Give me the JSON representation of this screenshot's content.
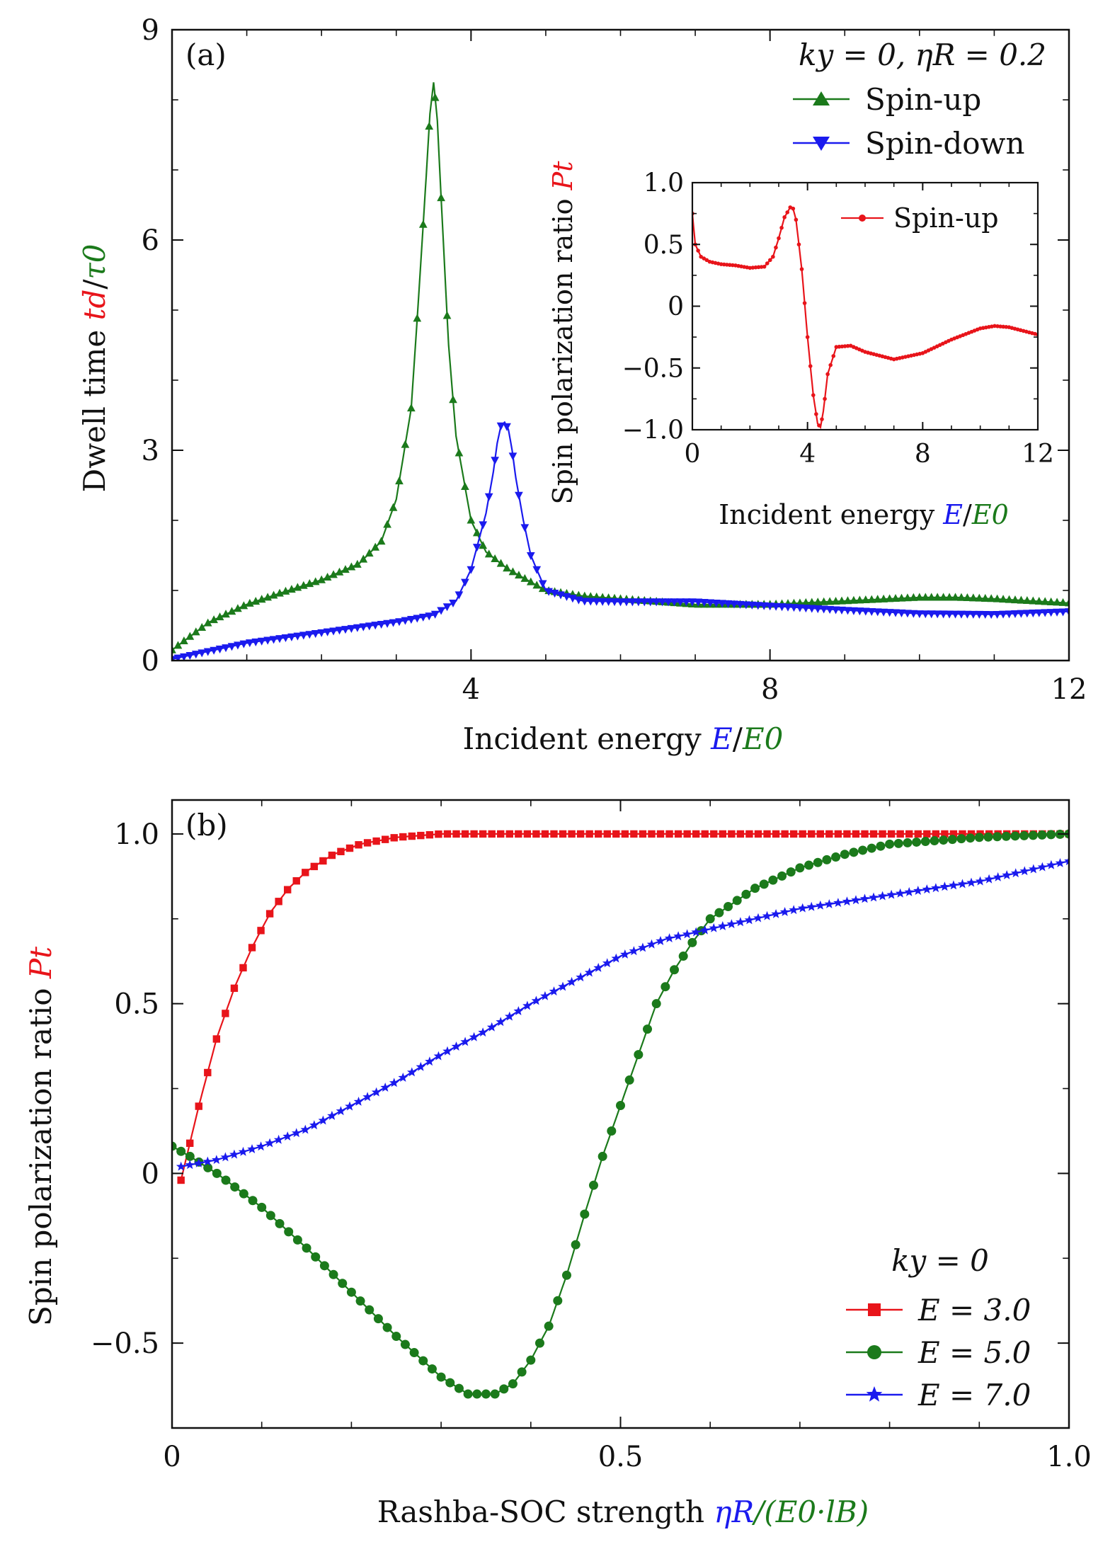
{
  "chart_data": [
    {
      "id": "a",
      "type": "line",
      "panel_label": "(a)",
      "title": "",
      "xlabel": "Incident energy E/E0",
      "xlabel_text": "Incident energy",
      "xlabel_symbol": "E",
      "xlabel_sep": "/",
      "xlabel_norm": "E0",
      "ylabel": "Dwell time td/τ0",
      "ylabel_text": "Dwell time",
      "ylabel_symbol": "td",
      "ylabel_sep": "/",
      "ylabel_norm": "τ0",
      "xlim": [
        0,
        12
      ],
      "ylim": [
        0,
        9
      ],
      "xticks": [
        4,
        8,
        12
      ],
      "yticks": [
        0,
        3,
        6,
        9
      ],
      "legend_position": "top-right",
      "legend_title": "ky = 0, ηR = 0.2",
      "colors": {
        "spin_up": "#1b7a1b",
        "spin_down": "#1a1aee"
      },
      "series": [
        {
          "name": "Spin-up",
          "color": "#1b7a1b",
          "marker": "triangle-up",
          "x": [
            0,
            0.5,
            1,
            1.5,
            2,
            2.5,
            2.8,
            3.0,
            3.2,
            3.3,
            3.4,
            3.45,
            3.5,
            3.55,
            3.6,
            3.7,
            3.8,
            4.0,
            4.2,
            4.5,
            5.0,
            5.5,
            6,
            7,
            8,
            9,
            10,
            10.5,
            11,
            12
          ],
          "values": [
            0.15,
            0.55,
            0.8,
            0.98,
            1.15,
            1.38,
            1.7,
            2.3,
            3.6,
            5.2,
            6.9,
            7.8,
            8.25,
            7.7,
            6.6,
            4.5,
            3.2,
            2.0,
            1.55,
            1.3,
            1.0,
            0.92,
            0.88,
            0.8,
            0.8,
            0.85,
            0.9,
            0.9,
            0.88,
            0.82
          ]
        },
        {
          "name": "Spin-down",
          "color": "#1a1aee",
          "marker": "triangle-down",
          "x": [
            0,
            1,
            2,
            3,
            3.5,
            3.8,
            4.0,
            4.2,
            4.3,
            4.35,
            4.4,
            4.45,
            4.5,
            4.55,
            4.6,
            4.7,
            4.8,
            5.0,
            5.5,
            6,
            7,
            8,
            9,
            10,
            11,
            12
          ],
          "values": [
            0.02,
            0.25,
            0.4,
            0.55,
            0.65,
            0.85,
            1.3,
            2.1,
            2.7,
            3.1,
            3.35,
            3.4,
            3.3,
            3.0,
            2.6,
            2.0,
            1.5,
            1.0,
            0.85,
            0.84,
            0.84,
            0.78,
            0.72,
            0.67,
            0.66,
            0.7
          ]
        }
      ]
    },
    {
      "id": "a_inset",
      "type": "line",
      "title": "",
      "xlabel": "Incident energy E/E0",
      "xlabel_text": "Incident energy",
      "xlabel_symbol": "E",
      "xlabel_sep": "/",
      "xlabel_norm": "E0",
      "ylabel": "Spin polarization ratio Pt",
      "ylabel_text": "Spin polarization ratio",
      "ylabel_symbol": "Pt",
      "xlim": [
        0,
        12
      ],
      "ylim": [
        -1.0,
        1.0
      ],
      "xticks": [
        0,
        4,
        8,
        12
      ],
      "xtick_labels": [
        "0",
        "4",
        "8",
        "12"
      ],
      "yticks": [
        -1.0,
        -0.5,
        0,
        0.5,
        1.0
      ],
      "ytick_labels": [
        "−1.0",
        "−0.5",
        "0",
        "0.5",
        "1.0"
      ],
      "legend_position": "top-right",
      "series": [
        {
          "name": "Spin-up",
          "color": "#e8141a",
          "marker": "dot",
          "x": [
            0,
            0.1,
            0.3,
            0.6,
            1.0,
            1.5,
            2.0,
            2.5,
            2.8,
            3.0,
            3.2,
            3.4,
            3.5,
            3.6,
            3.8,
            4.0,
            4.2,
            4.35,
            4.45,
            4.55,
            4.7,
            5.0,
            5.5,
            6,
            7,
            8,
            9,
            10,
            10.5,
            11,
            12
          ],
          "values": [
            0.75,
            0.5,
            0.4,
            0.36,
            0.34,
            0.33,
            0.31,
            0.32,
            0.4,
            0.55,
            0.72,
            0.8,
            0.79,
            0.7,
            0.3,
            -0.25,
            -0.72,
            -0.95,
            -0.98,
            -0.85,
            -0.55,
            -0.33,
            -0.32,
            -0.37,
            -0.43,
            -0.38,
            -0.27,
            -0.18,
            -0.16,
            -0.17,
            -0.23
          ]
        }
      ]
    },
    {
      "id": "b",
      "type": "line",
      "panel_label": "(b)",
      "title": "",
      "xlabel": "Rashba-SOC strength ηR/(E0·lB)",
      "xlabel_text": "Rashba-SOC strength",
      "xlabel_symbol": "ηR",
      "xlabel_norm": "/(E0·lB)",
      "ylabel": "Spin polarization ratio Pt",
      "ylabel_text": "Spin polarization ratio",
      "ylabel_symbol": "Pt",
      "xlim": [
        0,
        1.0
      ],
      "ylim": [
        -0.75,
        1.1
      ],
      "xticks": [
        0,
        0.5,
        1.0
      ],
      "xtick_labels": [
        "0",
        "0.5",
        "1.0"
      ],
      "yticks": [
        -0.5,
        0,
        0.5,
        1.0
      ],
      "ytick_labels": [
        "−0.5",
        "0",
        "0.5",
        "1.0"
      ],
      "legend_position": "bottom-right",
      "legend_title": "ky = 0",
      "series": [
        {
          "name": "E = 3.0",
          "color": "#e8141a",
          "marker": "square",
          "x": [
            0.01,
            0.02,
            0.03,
            0.05,
            0.07,
            0.09,
            0.11,
            0.13,
            0.15,
            0.18,
            0.21,
            0.25,
            0.3,
            0.4,
            0.5,
            0.6,
            0.7,
            0.8,
            0.9,
            1.0
          ],
          "values": [
            -0.02,
            0.09,
            0.2,
            0.4,
            0.55,
            0.67,
            0.77,
            0.84,
            0.89,
            0.94,
            0.97,
            0.99,
            1.0,
            1.0,
            1.0,
            1.0,
            1.0,
            1.0,
            1.0,
            1.0
          ]
        },
        {
          "name": "E = 5.0",
          "color": "#1b7a1b",
          "marker": "circle",
          "x": [
            0.0,
            0.02,
            0.05,
            0.1,
            0.15,
            0.2,
            0.25,
            0.3,
            0.33,
            0.36,
            0.38,
            0.4,
            0.42,
            0.44,
            0.46,
            0.48,
            0.5,
            0.52,
            0.54,
            0.56,
            0.58,
            0.6,
            0.65,
            0.7,
            0.75,
            0.8,
            0.85,
            0.9,
            0.95,
            1.0
          ],
          "values": [
            0.08,
            0.05,
            0.0,
            -0.1,
            -0.22,
            -0.35,
            -0.48,
            -0.6,
            -0.65,
            -0.65,
            -0.62,
            -0.55,
            -0.45,
            -0.3,
            -0.12,
            0.05,
            0.2,
            0.35,
            0.5,
            0.6,
            0.68,
            0.75,
            0.84,
            0.9,
            0.94,
            0.97,
            0.98,
            0.99,
            0.995,
            1.0
          ]
        },
        {
          "name": "E = 7.0",
          "color": "#1a1aee",
          "marker": "star",
          "x": [
            0.01,
            0.05,
            0.1,
            0.15,
            0.2,
            0.25,
            0.3,
            0.35,
            0.4,
            0.45,
            0.5,
            0.55,
            0.6,
            0.65,
            0.7,
            0.75,
            0.8,
            0.85,
            0.9,
            0.95,
            1.0
          ],
          "values": [
            0.02,
            0.04,
            0.08,
            0.13,
            0.2,
            0.27,
            0.35,
            0.42,
            0.5,
            0.57,
            0.64,
            0.69,
            0.72,
            0.75,
            0.78,
            0.8,
            0.82,
            0.84,
            0.86,
            0.89,
            0.92
          ]
        }
      ]
    }
  ]
}
